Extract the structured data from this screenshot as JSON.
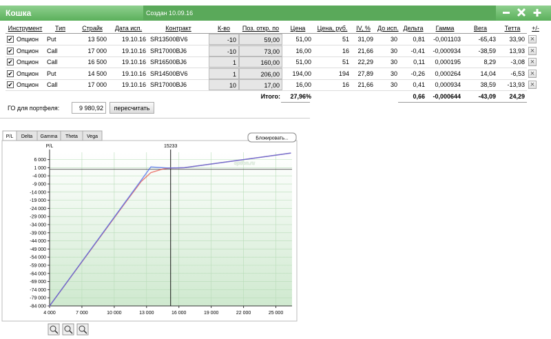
{
  "window": {
    "title": "Кошка",
    "created": "Создан 10.09.16"
  },
  "table": {
    "columns": [
      "Инструмент",
      "Тип",
      "Страйк",
      "Дата исп.",
      "Контракт",
      "К-во",
      "Поз. откр. по",
      "Цена",
      "Цена, руб.",
      "IV, %",
      "До исп.",
      "Дельта",
      "Гамма",
      "Вега",
      "Тетта",
      "+/-"
    ],
    "rows": [
      [
        "Опцион",
        "Put",
        "13 500",
        "19.10.16",
        "SR13500BV6",
        "-10",
        "59,00",
        "51,00",
        "51",
        "31,09",
        "30",
        "0,81",
        "-0,001103",
        "-65,43",
        "33,90"
      ],
      [
        "Опцион",
        "Call",
        "17 000",
        "19.10.16",
        "SR17000BJ6",
        "-10",
        "73,00",
        "16,00",
        "16",
        "21,66",
        "30",
        "-0,41",
        "-0,000934",
        "-38,59",
        "13,93"
      ],
      [
        "Опцион",
        "Call",
        "16 500",
        "19.10.16",
        "SR16500BJ6",
        "1",
        "160,00",
        "51,00",
        "51",
        "22,29",
        "30",
        "0,11",
        "0,000195",
        "8,29",
        "-3,08"
      ],
      [
        "Опцион",
        "Put",
        "14 500",
        "19.10.16",
        "SR14500BV6",
        "1",
        "206,00",
        "194,00",
        "194",
        "27,89",
        "30",
        "-0,26",
        "0,000264",
        "14,04",
        "-6,53"
      ],
      [
        "Опцион",
        "Call",
        "17 000",
        "19.10.16",
        "SR17000BJ6",
        "10",
        "17,00",
        "16,00",
        "16",
        "21,66",
        "30",
        "0,41",
        "0,000934",
        "38,59",
        "-13,93"
      ]
    ],
    "totals": [
      null,
      null,
      null,
      null,
      null,
      null,
      "Итого:",
      "27,96%",
      null,
      null,
      null,
      "0,66",
      "-0,000644",
      "-43,09",
      "24,29"
    ]
  },
  "portfolio": {
    "label": "ГО для портфеля:",
    "value": "9 980,92",
    "button": "пересчитать"
  },
  "tabs": [
    "P/L",
    "Delta",
    "Gamma",
    "Theta",
    "Vega"
  ],
  "block_button": "Блокировать...",
  "watermark": "option.ru",
  "chart_data": {
    "type": "line",
    "y_label": "P/L",
    "marker": 15233,
    "xlim": [
      4000,
      26500
    ],
    "ylim": [
      -84000,
      10500
    ],
    "xticks": [
      {
        "value": 4000,
        "label": "4 000"
      },
      {
        "value": 7000,
        "label": "7 000"
      },
      {
        "value": 10000,
        "label": "10 000"
      },
      {
        "value": 13000,
        "label": "13 000"
      },
      {
        "value": 16000,
        "label": "16 000"
      },
      {
        "value": 19000,
        "label": "19 000"
      },
      {
        "value": 22000,
        "label": "22 000"
      },
      {
        "value": 25000,
        "label": "25 000"
      }
    ],
    "yticks": [
      {
        "value": 6000,
        "label": "6 000"
      },
      {
        "value": 1000,
        "label": "1 000"
      },
      {
        "value": -4000,
        "label": "-4 000"
      },
      {
        "value": -9000,
        "label": "-9 000"
      },
      {
        "value": -14000,
        "label": "-14 000"
      },
      {
        "value": -19000,
        "label": "-19 000"
      },
      {
        "value": -24000,
        "label": "-24 000"
      },
      {
        "value": -29000,
        "label": "-29 000"
      },
      {
        "value": -34000,
        "label": "-34 000"
      },
      {
        "value": -39000,
        "label": "-39 000"
      },
      {
        "value": -44000,
        "label": "-44 000"
      },
      {
        "value": -49000,
        "label": "-49 000"
      },
      {
        "value": -54000,
        "label": "-54 000"
      },
      {
        "value": -59000,
        "label": "-59 000"
      },
      {
        "value": -64000,
        "label": "-64 000"
      },
      {
        "value": -69000,
        "label": "-69 000"
      },
      {
        "value": -74000,
        "label": "-74 000"
      },
      {
        "value": -79000,
        "label": "-79 000"
      },
      {
        "value": -84000,
        "label": "-84 000"
      }
    ],
    "grid": true,
    "x": [
      4000,
      11000,
      12500,
      13400,
      14500,
      15000,
      16500,
      26400
    ],
    "series": [
      {
        "color": "#e8584e",
        "values": [
          -84000,
          -20800,
          -7500,
          -2000,
          200,
          700,
          1000,
          10000
        ]
      },
      {
        "color": "#4a68ee",
        "values": [
          -84000,
          -20330,
          -6690,
          1500,
          1000,
          800,
          1000,
          10000
        ]
      }
    ]
  }
}
